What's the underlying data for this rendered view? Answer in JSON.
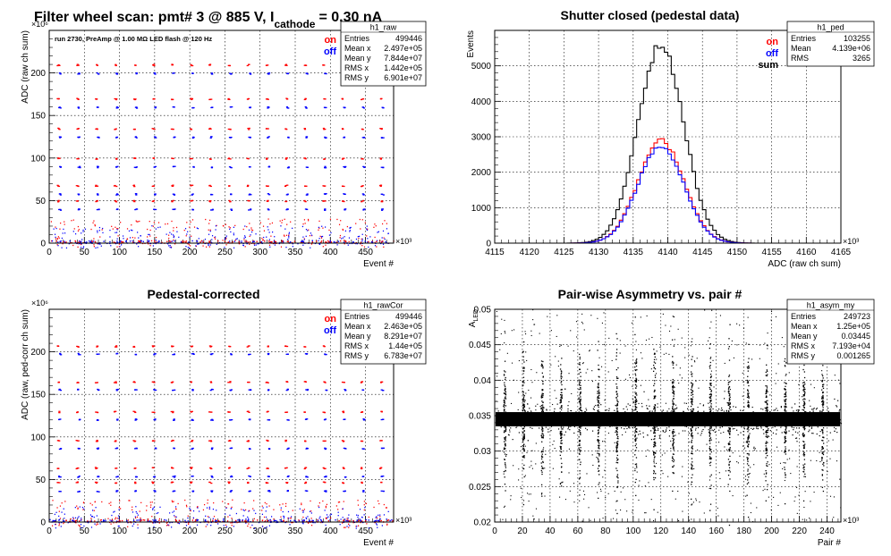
{
  "canvas_title": {
    "prefix": "Filter wheel scan: pmt#   3 @   885 V, I",
    "subscript": "cathode",
    "suffix": "= 0.30 nA"
  },
  "colors": {
    "on": "#ff0000",
    "off": "#0000ff",
    "sum": "#000000",
    "ink": "#000000",
    "grid": "#000000"
  },
  "chart_data": [
    {
      "id": "raw",
      "type": "scatter",
      "title": "",
      "ylabel": "ADC (raw ch sum)",
      "xlabel": "Event #",
      "xlim": [
        0,
        490
      ],
      "ylim": [
        0,
        250
      ],
      "x_exponent": "×10³",
      "y_exponent": "×10⁶",
      "xticks": [
        0,
        50,
        100,
        150,
        200,
        250,
        300,
        350,
        400,
        450
      ],
      "yticks": [
        0,
        50,
        100,
        150,
        200
      ],
      "annotation": "run 2730, PreAmp @ 1.00 MΩ   LED flash @  120 Hz",
      "legend": [
        "on",
        "off"
      ],
      "stats": {
        "name": "h1_raw",
        "rows": [
          [
            "Entries",
            "499446"
          ],
          [
            "Mean x",
            "2.497e+05"
          ],
          [
            "Mean y",
            "7.844e+07"
          ],
          [
            "RMS x",
            "1.442e+05"
          ],
          [
            "RMS y",
            "6.901e+07"
          ]
        ]
      },
      "levels_on": [
        210,
        170,
        135,
        100,
        68,
        50,
        22,
        3
      ],
      "levels_off": [
        200,
        160,
        125,
        90,
        58,
        40,
        14,
        2
      ],
      "period": 27,
      "x_start": 12
    },
    {
      "id": "ped",
      "type": "line",
      "title": "Shutter closed (pedestal data)",
      "ylabel": "Events",
      "xlabel": "ADC (raw ch sum)",
      "xlim": [
        4115,
        4165
      ],
      "ylim": [
        0,
        6000
      ],
      "x_exponent": "×10³",
      "xticks": [
        4115,
        4120,
        4125,
        4130,
        4135,
        4140,
        4145,
        4150,
        4155,
        4160,
        4165
      ],
      "yticks": [
        0,
        1000,
        2000,
        3000,
        4000,
        5000
      ],
      "legend": [
        "on",
        "off",
        "sum"
      ],
      "stats": {
        "name": "h1_ped",
        "rows": [
          [
            "Entries",
            "103255"
          ],
          [
            "Mean",
            "4.139e+06"
          ],
          [
            "RMS",
            "3265"
          ]
        ]
      },
      "series": [
        {
          "name": "sum",
          "mean": 4139,
          "sigma": 3.3,
          "peak": 5600
        },
        {
          "name": "on",
          "mean": 4139,
          "sigma": 3.3,
          "peak": 2900
        },
        {
          "name": "off",
          "mean": 4139,
          "sigma": 3.3,
          "peak": 2750
        }
      ]
    },
    {
      "id": "cor",
      "type": "scatter",
      "title": "Pedestal-corrected",
      "ylabel": "ADC (raw, ped-corr ch sum)",
      "xlabel": "Event #",
      "xlim": [
        0,
        490
      ],
      "ylim": [
        0,
        250
      ],
      "x_exponent": "×10³",
      "y_exponent": "×10⁶",
      "xticks": [
        0,
        50,
        100,
        150,
        200,
        250,
        300,
        350,
        400,
        450
      ],
      "yticks": [
        0,
        50,
        100,
        150,
        200
      ],
      "legend": [
        "on",
        "off"
      ],
      "stats": {
        "name": "h1_rawCor",
        "rows": [
          [
            "Entries",
            "499446"
          ],
          [
            "Mean x",
            "2.463e+05"
          ],
          [
            "Mean y",
            "8.291e+07"
          ],
          [
            "RMS x",
            "1.44e+05"
          ],
          [
            "RMS y",
            "6.783e+07"
          ]
        ]
      },
      "levels_on": [
        207,
        165,
        130,
        96,
        64,
        47,
        20,
        1
      ],
      "levels_off": [
        198,
        156,
        121,
        87,
        54,
        37,
        12,
        0
      ],
      "period": 27,
      "x_start": 12
    },
    {
      "id": "asym",
      "type": "scatter",
      "title": "Pair-wise Asymmetry vs. pair #",
      "ylabel": "A_LED",
      "ylabel_main": "A",
      "ylabel_sub": "LED",
      "xlabel": "Pair #",
      "xlim": [
        0,
        250
      ],
      "ylim": [
        0.02,
        0.05
      ],
      "x_exponent": "×10³",
      "xticks": [
        0,
        20,
        40,
        60,
        80,
        100,
        120,
        140,
        160,
        180,
        200,
        220,
        240
      ],
      "yticks": [
        0.02,
        0.025,
        0.03,
        0.035,
        0.04,
        0.045,
        0.05
      ],
      "stats": {
        "name": "h1_asym_my",
        "rows": [
          [
            "Entries",
            "249723"
          ],
          [
            "Mean x",
            "1.25e+05"
          ],
          [
            "Mean y",
            "0.03445"
          ],
          [
            "RMS x",
            "7.193e+04"
          ],
          [
            "RMS y",
            "0.001265"
          ]
        ]
      },
      "band_center": 0.0345,
      "band_halfwidth": 0.001,
      "spike_period": 13.5,
      "spike_start": 7
    }
  ]
}
